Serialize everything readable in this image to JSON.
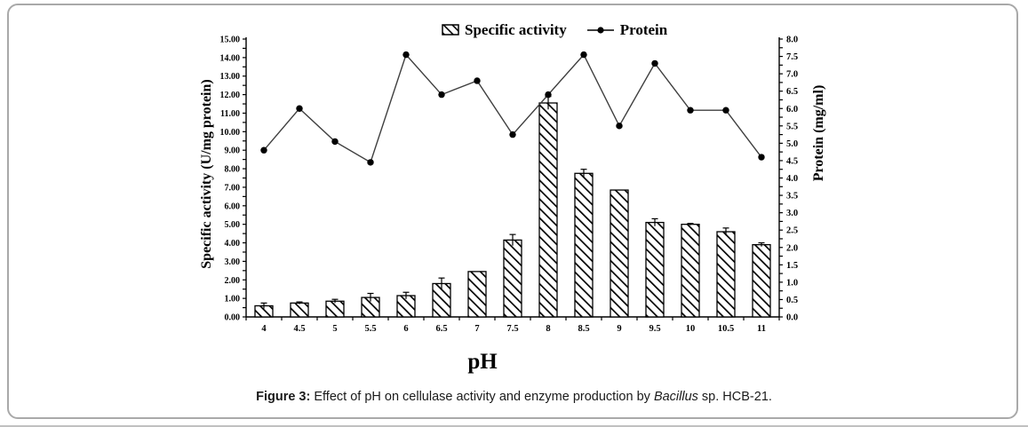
{
  "figure": {
    "caption_prefix": "Figure 3:",
    "caption_body": " Effect of pH on cellulase activity and enzyme production by ",
    "caption_italic": "Bacillus",
    "caption_suffix": " sp. HCB-21."
  },
  "legend": {
    "bar_label": "Specific activity",
    "line_label": "Protein"
  },
  "axes": {
    "left_title": "Specific activity (U/mg protein)",
    "right_title": "Protein (mg/ml)",
    "x_title": "pH"
  },
  "chart_data": {
    "type": "bar",
    "title": "",
    "categories": [
      "4",
      "4.5",
      "5",
      "5.5",
      "6",
      "6.5",
      "7",
      "7.5",
      "8",
      "8.5",
      "9",
      "9.5",
      "10",
      "10.5",
      "11"
    ],
    "xlabel": "pH",
    "ylabel_left": "Specific activity (U/mg protein)",
    "ylabel_right": "Protein (mg/ml)",
    "grid": false,
    "legend_position": "top-center",
    "left_axis": {
      "min": 0,
      "max": 15,
      "tick_step": 0.5,
      "label_step": 1.0,
      "decimals": 2
    },
    "right_axis": {
      "min": 0,
      "max": 8,
      "tick_step": 0.25,
      "label_step": 0.5,
      "decimals": 1
    },
    "series": [
      {
        "name": "Specific activity",
        "type": "bar",
        "axis": "left",
        "values": [
          0.6,
          0.75,
          0.85,
          1.05,
          1.15,
          1.8,
          2.45,
          4.15,
          11.55,
          7.75,
          6.85,
          5.1,
          5.0,
          4.6,
          3.9
        ],
        "errors": [
          0.15,
          0.06,
          0.1,
          0.22,
          0.18,
          0.3,
          0,
          0.3,
          0.35,
          0.22,
          0,
          0.2,
          0.05,
          0.2,
          0.1
        ]
      },
      {
        "name": "Protein",
        "type": "line",
        "axis": "right",
        "values": [
          4.8,
          6.0,
          5.05,
          4.45,
          7.55,
          6.4,
          6.8,
          5.25,
          6.4,
          7.55,
          5.5,
          7.3,
          5.95,
          5.95,
          4.6
        ]
      }
    ]
  },
  "colors": {
    "ink": "#000000",
    "line": "#3f3f3f",
    "panel_border": "#a9a9a9"
  }
}
